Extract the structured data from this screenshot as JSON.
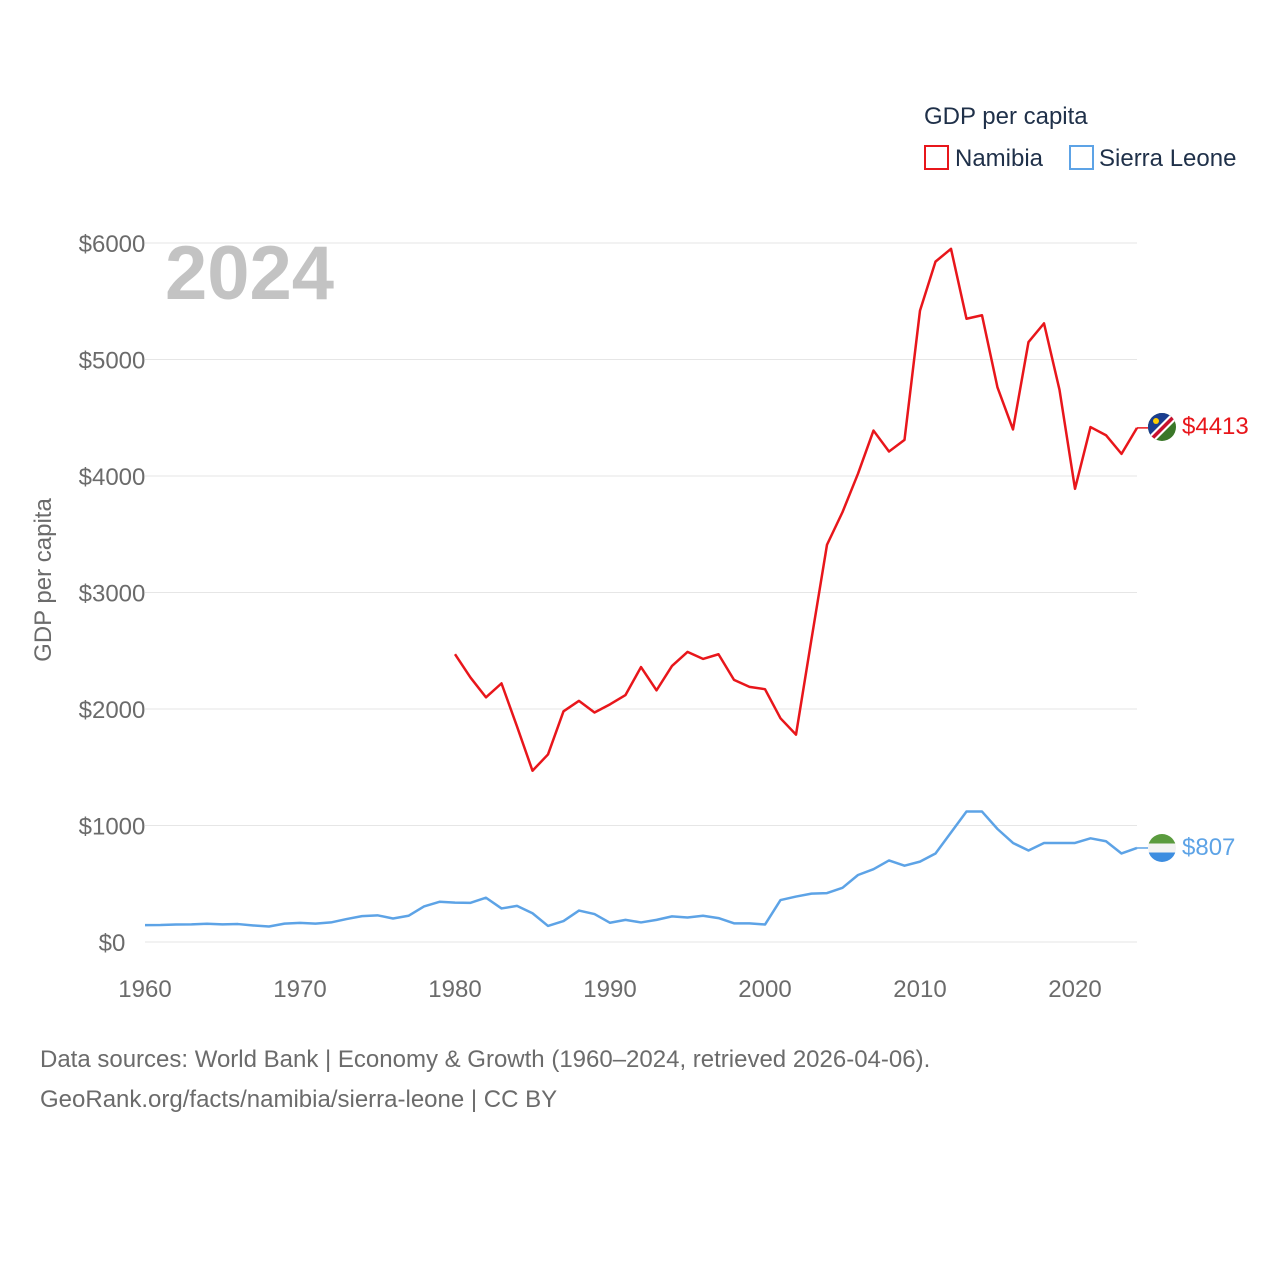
{
  "chart_data": {
    "type": "line",
    "title": "GDP per capita",
    "year_label": "2024",
    "ylabel": "GDP per capita",
    "xlabel": "",
    "xlim": [
      1960,
      2024
    ],
    "ylim": [
      0,
      6000
    ],
    "y_ticks": [
      0,
      1000,
      2000,
      3000,
      4000,
      5000,
      6000
    ],
    "y_tick_labels": [
      "$0",
      "$1000",
      "$2000",
      "$3000",
      "$4000",
      "$5000",
      "$6000"
    ],
    "x_ticks": [
      1960,
      1970,
      1980,
      1990,
      2000,
      2010,
      2020
    ],
    "x_tick_labels": [
      "1960",
      "1970",
      "1980",
      "1990",
      "2000",
      "2010",
      "2020"
    ],
    "legend_title": "GDP per capita",
    "legend_position": "top-right",
    "series": [
      {
        "name": "Namibia",
        "color": "#e8161b",
        "end_label": "$4413",
        "flag_icon": "namibia-flag-icon",
        "x": [
          1980,
          1981,
          1982,
          1983,
          1984,
          1985,
          1986,
          1987,
          1988,
          1989,
          1990,
          1991,
          1992,
          1993,
          1994,
          1995,
          1996,
          1997,
          1998,
          1999,
          2000,
          2001,
          2002,
          2003,
          2004,
          2005,
          2006,
          2007,
          2008,
          2009,
          2010,
          2011,
          2012,
          2013,
          2014,
          2015,
          2016,
          2017,
          2018,
          2019,
          2020,
          2021,
          2022,
          2023,
          2024
        ],
        "values": [
          2470,
          2270,
          2100,
          2220,
          1850,
          1470,
          1610,
          1980,
          2070,
          1970,
          2040,
          2120,
          2360,
          2160,
          2370,
          2490,
          2430,
          2470,
          2250,
          2190,
          2170,
          1920,
          1780,
          2600,
          3410,
          3690,
          4020,
          4390,
          4210,
          4310,
          5420,
          5840,
          5950,
          5350,
          5380,
          4760,
          4400,
          5150,
          5310,
          4740,
          3890,
          4420,
          4350,
          4190,
          4413
        ]
      },
      {
        "name": "Sierra Leone",
        "color": "#5da3e6",
        "end_label": "$807",
        "flag_icon": "sierra-leone-flag-icon",
        "x": [
          1960,
          1961,
          1962,
          1963,
          1964,
          1965,
          1966,
          1967,
          1968,
          1969,
          1970,
          1971,
          1972,
          1973,
          1974,
          1975,
          1976,
          1977,
          1978,
          1979,
          1980,
          1981,
          1982,
          1983,
          1984,
          1985,
          1986,
          1987,
          1988,
          1989,
          1990,
          1991,
          1992,
          1993,
          1994,
          1995,
          1996,
          1997,
          1998,
          1999,
          2000,
          2001,
          2002,
          2003,
          2004,
          2005,
          2006,
          2007,
          2008,
          2009,
          2010,
          2011,
          2012,
          2013,
          2014,
          2015,
          2016,
          2017,
          2018,
          2019,
          2020,
          2021,
          2022,
          2023,
          2024
        ],
        "values": [
          145,
          146,
          150,
          151,
          157,
          151,
          154,
          142,
          133,
          158,
          164,
          158,
          168,
          197,
          222,
          229,
          202,
          225,
          305,
          345,
          338,
          336,
          380,
          288,
          310,
          247,
          138,
          180,
          270,
          240,
          165,
          190,
          168,
          190,
          220,
          210,
          225,
          205,
          160,
          160,
          150,
          360,
          390,
          415,
          420,
          465,
          575,
          625,
          700,
          655,
          690,
          760,
          940,
          1120,
          1120,
          970,
          850,
          785,
          850,
          850,
          850,
          890,
          865,
          760,
          807
        ]
      }
    ]
  },
  "footer": {
    "sources_line": "Data sources: World Bank | Economy & Growth (1960–2024, retrieved 2026-04-06).",
    "url_line": "GeoRank.org/facts/namibia/sierra-leone | CC BY"
  }
}
